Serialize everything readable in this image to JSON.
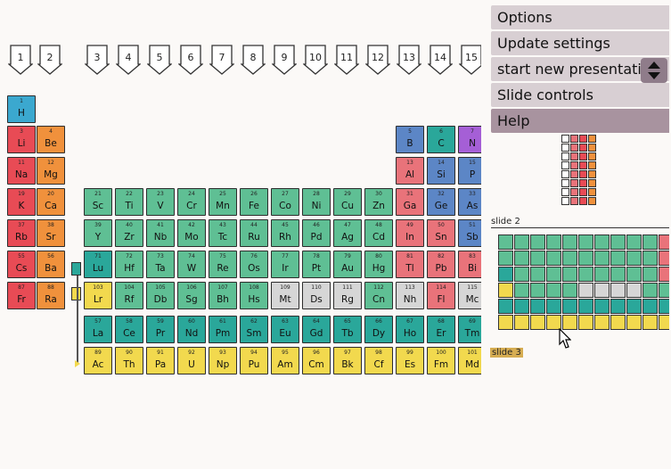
{
  "groups": [
    "1",
    "2",
    "3",
    "4",
    "5",
    "6",
    "7",
    "8",
    "9",
    "10",
    "11",
    "12",
    "13",
    "14",
    "15"
  ],
  "colors": {
    "hydrogen": "#3ba8cf",
    "alkali": "#e84b55",
    "alkaline": "#f0913c",
    "transition": "#5fbf94",
    "lanthanide": "#2aa79a",
    "actinide": "#f2d94e",
    "post": "#e9737a",
    "metalloid": "#5c86c6",
    "nonmetal": "#a55fd6",
    "unknown": "#d6d6d6"
  },
  "elements": [
    {
      "n": "1",
      "s": "H",
      "c": "hydrogen",
      "r": 0,
      "g": 0
    },
    {
      "n": "3",
      "s": "Li",
      "c": "alkali",
      "r": 1,
      "g": 0
    },
    {
      "n": "4",
      "s": "Be",
      "c": "alkaline",
      "r": 1,
      "g": 1
    },
    {
      "n": "5",
      "s": "B",
      "c": "metalloid",
      "r": 1,
      "g": 12
    },
    {
      "n": "6",
      "s": "C",
      "c": "lanthanide",
      "r": 1,
      "g": 13
    },
    {
      "n": "7",
      "s": "N",
      "c": "nonmetal",
      "r": 1,
      "g": 14
    },
    {
      "n": "11",
      "s": "Na",
      "c": "alkali",
      "r": 2,
      "g": 0
    },
    {
      "n": "12",
      "s": "Mg",
      "c": "alkaline",
      "r": 2,
      "g": 1
    },
    {
      "n": "13",
      "s": "Al",
      "c": "post",
      "r": 2,
      "g": 12
    },
    {
      "n": "14",
      "s": "Si",
      "c": "metalloid",
      "r": 2,
      "g": 13
    },
    {
      "n": "15",
      "s": "P",
      "c": "metalloid",
      "r": 2,
      "g": 14
    },
    {
      "n": "19",
      "s": "K",
      "c": "alkali",
      "r": 3,
      "g": 0
    },
    {
      "n": "20",
      "s": "Ca",
      "c": "alkaline",
      "r": 3,
      "g": 1
    },
    {
      "n": "21",
      "s": "Sc",
      "c": "transition",
      "r": 3,
      "g": 2
    },
    {
      "n": "22",
      "s": "Ti",
      "c": "transition",
      "r": 3,
      "g": 3
    },
    {
      "n": "23",
      "s": "V",
      "c": "transition",
      "r": 3,
      "g": 4
    },
    {
      "n": "24",
      "s": "Cr",
      "c": "transition",
      "r": 3,
      "g": 5
    },
    {
      "n": "25",
      "s": "Mn",
      "c": "transition",
      "r": 3,
      "g": 6
    },
    {
      "n": "26",
      "s": "Fe",
      "c": "transition",
      "r": 3,
      "g": 7
    },
    {
      "n": "27",
      "s": "Co",
      "c": "transition",
      "r": 3,
      "g": 8
    },
    {
      "n": "28",
      "s": "Ni",
      "c": "transition",
      "r": 3,
      "g": 9
    },
    {
      "n": "29",
      "s": "Cu",
      "c": "transition",
      "r": 3,
      "g": 10
    },
    {
      "n": "30",
      "s": "Zn",
      "c": "transition",
      "r": 3,
      "g": 11
    },
    {
      "n": "31",
      "s": "Ga",
      "c": "post",
      "r": 3,
      "g": 12
    },
    {
      "n": "32",
      "s": "Ge",
      "c": "metalloid",
      "r": 3,
      "g": 13
    },
    {
      "n": "33",
      "s": "As",
      "c": "metalloid",
      "r": 3,
      "g": 14
    },
    {
      "n": "37",
      "s": "Rb",
      "c": "alkali",
      "r": 4,
      "g": 0
    },
    {
      "n": "38",
      "s": "Sr",
      "c": "alkaline",
      "r": 4,
      "g": 1
    },
    {
      "n": "39",
      "s": "Y",
      "c": "transition",
      "r": 4,
      "g": 2
    },
    {
      "n": "40",
      "s": "Zr",
      "c": "transition",
      "r": 4,
      "g": 3
    },
    {
      "n": "41",
      "s": "Nb",
      "c": "transition",
      "r": 4,
      "g": 4
    },
    {
      "n": "42",
      "s": "Mo",
      "c": "transition",
      "r": 4,
      "g": 5
    },
    {
      "n": "43",
      "s": "Tc",
      "c": "transition",
      "r": 4,
      "g": 6
    },
    {
      "n": "44",
      "s": "Ru",
      "c": "transition",
      "r": 4,
      "g": 7
    },
    {
      "n": "45",
      "s": "Rh",
      "c": "transition",
      "r": 4,
      "g": 8
    },
    {
      "n": "46",
      "s": "Pd",
      "c": "transition",
      "r": 4,
      "g": 9
    },
    {
      "n": "47",
      "s": "Ag",
      "c": "transition",
      "r": 4,
      "g": 10
    },
    {
      "n": "48",
      "s": "Cd",
      "c": "transition",
      "r": 4,
      "g": 11
    },
    {
      "n": "49",
      "s": "In",
      "c": "post",
      "r": 4,
      "g": 12
    },
    {
      "n": "50",
      "s": "Sn",
      "c": "post",
      "r": 4,
      "g": 13
    },
    {
      "n": "51",
      "s": "Sb",
      "c": "metalloid",
      "r": 4,
      "g": 14
    },
    {
      "n": "55",
      "s": "Cs",
      "c": "alkali",
      "r": 5,
      "g": 0
    },
    {
      "n": "56",
      "s": "Ba",
      "c": "alkaline",
      "r": 5,
      "g": 1
    },
    {
      "n": "71",
      "s": "Lu",
      "c": "lanthanide",
      "r": 5,
      "g": 2
    },
    {
      "n": "72",
      "s": "Hf",
      "c": "transition",
      "r": 5,
      "g": 3
    },
    {
      "n": "73",
      "s": "Ta",
      "c": "transition",
      "r": 5,
      "g": 4
    },
    {
      "n": "74",
      "s": "W",
      "c": "transition",
      "r": 5,
      "g": 5
    },
    {
      "n": "75",
      "s": "Re",
      "c": "transition",
      "r": 5,
      "g": 6
    },
    {
      "n": "76",
      "s": "Os",
      "c": "transition",
      "r": 5,
      "g": 7
    },
    {
      "n": "77",
      "s": "Ir",
      "c": "transition",
      "r": 5,
      "g": 8
    },
    {
      "n": "78",
      "s": "Pt",
      "c": "transition",
      "r": 5,
      "g": 9
    },
    {
      "n": "79",
      "s": "Au",
      "c": "transition",
      "r": 5,
      "g": 10
    },
    {
      "n": "80",
      "s": "Hg",
      "c": "transition",
      "r": 5,
      "g": 11
    },
    {
      "n": "81",
      "s": "Tl",
      "c": "post",
      "r": 5,
      "g": 12
    },
    {
      "n": "82",
      "s": "Pb",
      "c": "post",
      "r": 5,
      "g": 13
    },
    {
      "n": "83",
      "s": "Bi",
      "c": "post",
      "r": 5,
      "g": 14
    },
    {
      "n": "87",
      "s": "Fr",
      "c": "alkali",
      "r": 6,
      "g": 0
    },
    {
      "n": "88",
      "s": "Ra",
      "c": "alkaline",
      "r": 6,
      "g": 1
    },
    {
      "n": "103",
      "s": "Lr",
      "c": "actinide",
      "r": 6,
      "g": 2
    },
    {
      "n": "104",
      "s": "Rf",
      "c": "transition",
      "r": 6,
      "g": 3
    },
    {
      "n": "105",
      "s": "Db",
      "c": "transition",
      "r": 6,
      "g": 4
    },
    {
      "n": "106",
      "s": "Sg",
      "c": "transition",
      "r": 6,
      "g": 5
    },
    {
      "n": "107",
      "s": "Bh",
      "c": "transition",
      "r": 6,
      "g": 6
    },
    {
      "n": "108",
      "s": "Hs",
      "c": "transition",
      "r": 6,
      "g": 7
    },
    {
      "n": "109",
      "s": "Mt",
      "c": "unknown",
      "r": 6,
      "g": 8
    },
    {
      "n": "110",
      "s": "Ds",
      "c": "unknown",
      "r": 6,
      "g": 9
    },
    {
      "n": "111",
      "s": "Rg",
      "c": "unknown",
      "r": 6,
      "g": 10
    },
    {
      "n": "112",
      "s": "Cn",
      "c": "transition",
      "r": 6,
      "g": 11
    },
    {
      "n": "113",
      "s": "Nh",
      "c": "unknown",
      "r": 6,
      "g": 12
    },
    {
      "n": "114",
      "s": "Fl",
      "c": "post",
      "r": 6,
      "g": 13
    },
    {
      "n": "115",
      "s": "Mc",
      "c": "unknown",
      "r": 6,
      "g": 14
    },
    {
      "n": "57",
      "s": "La",
      "c": "lanthanide",
      "r": 7,
      "g": 2
    },
    {
      "n": "58",
      "s": "Ce",
      "c": "lanthanide",
      "r": 7,
      "g": 3
    },
    {
      "n": "59",
      "s": "Pr",
      "c": "lanthanide",
      "r": 7,
      "g": 4
    },
    {
      "n": "60",
      "s": "Nd",
      "c": "lanthanide",
      "r": 7,
      "g": 5
    },
    {
      "n": "61",
      "s": "Pm",
      "c": "lanthanide",
      "r": 7,
      "g": 6
    },
    {
      "n": "62",
      "s": "Sm",
      "c": "lanthanide",
      "r": 7,
      "g": 7
    },
    {
      "n": "63",
      "s": "Eu",
      "c": "lanthanide",
      "r": 7,
      "g": 8
    },
    {
      "n": "64",
      "s": "Gd",
      "c": "lanthanide",
      "r": 7,
      "g": 9
    },
    {
      "n": "65",
      "s": "Tb",
      "c": "lanthanide",
      "r": 7,
      "g": 10
    },
    {
      "n": "66",
      "s": "Dy",
      "c": "lanthanide",
      "r": 7,
      "g": 11
    },
    {
      "n": "67",
      "s": "Ho",
      "c": "lanthanide",
      "r": 7,
      "g": 12
    },
    {
      "n": "68",
      "s": "Er",
      "c": "lanthanide",
      "r": 7,
      "g": 13
    },
    {
      "n": "69",
      "s": "Tm",
      "c": "lanthanide",
      "r": 7,
      "g": 14
    },
    {
      "n": "89",
      "s": "Ac",
      "c": "actinide",
      "r": 8,
      "g": 2
    },
    {
      "n": "90",
      "s": "Th",
      "c": "actinide",
      "r": 8,
      "g": 3
    },
    {
      "n": "91",
      "s": "Pa",
      "c": "actinide",
      "r": 8,
      "g": 4
    },
    {
      "n": "92",
      "s": "U",
      "c": "actinide",
      "r": 8,
      "g": 5
    },
    {
      "n": "93",
      "s": "Np",
      "c": "actinide",
      "r": 8,
      "g": 6
    },
    {
      "n": "94",
      "s": "Pu",
      "c": "actinide",
      "r": 8,
      "g": 7
    },
    {
      "n": "95",
      "s": "Am",
      "c": "actinide",
      "r": 8,
      "g": 8
    },
    {
      "n": "96",
      "s": "Cm",
      "c": "actinide",
      "r": 8,
      "g": 9
    },
    {
      "n": "97",
      "s": "Bk",
      "c": "actinide",
      "r": 8,
      "g": 10
    },
    {
      "n": "98",
      "s": "Cf",
      "c": "actinide",
      "r": 8,
      "g": 11
    },
    {
      "n": "99",
      "s": "Es",
      "c": "actinide",
      "r": 8,
      "g": 12
    },
    {
      "n": "100",
      "s": "Fm",
      "c": "actinide",
      "r": 8,
      "g": 13
    },
    {
      "n": "101",
      "s": "Md",
      "c": "actinide",
      "r": 8,
      "g": 14
    }
  ],
  "menu": {
    "options": "Options",
    "update_settings": "Update settings",
    "start_new": "start new presentation",
    "slide_controls": "Slide controls",
    "help": "Help"
  },
  "slides": {
    "slide2": "slide 2",
    "slide3": "slide 3"
  }
}
